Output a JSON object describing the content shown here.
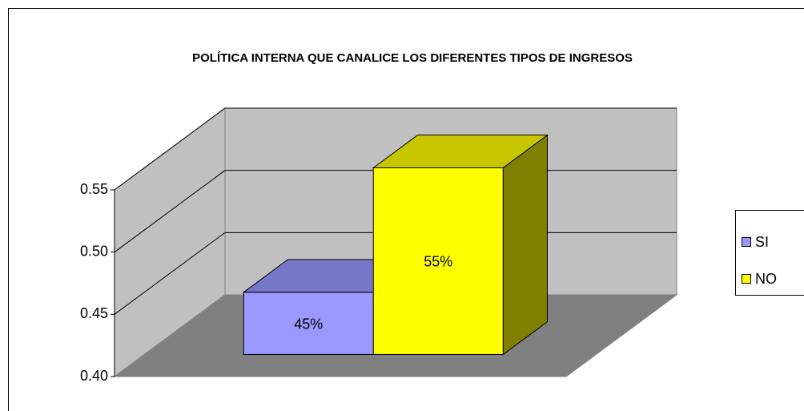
{
  "chart_data": {
    "type": "bar3d",
    "title": "POLÍTICA INTERNA QUE CANALICE LOS DIFERENTES TIPOS DE INGRESOS",
    "series": [
      {
        "name": "SI",
        "color": "#9999ff",
        "values": [
          0.45
        ],
        "value_labels": [
          "45%"
        ]
      },
      {
        "name": "NO",
        "color": "#ffff00",
        "values": [
          0.55
        ],
        "value_labels": [
          "55%"
        ]
      }
    ],
    "ylim": [
      0.4,
      0.55
    ],
    "yticks": [
      {
        "value": 0.4,
        "label": "0.40"
      },
      0.45,
      {
        "value": 0.5,
        "label": "0.50"
      },
      0.55
    ],
    "grid": true,
    "legend": "right"
  }
}
